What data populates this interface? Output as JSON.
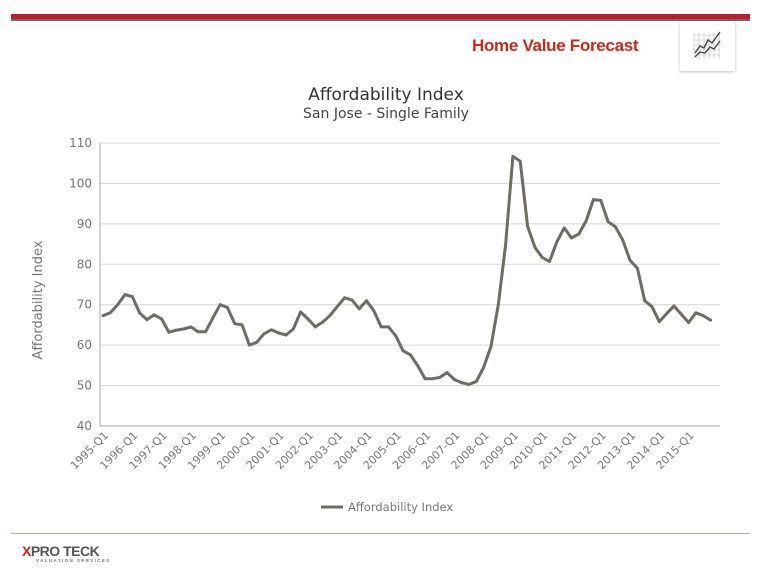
{
  "header": {
    "brand_title": "Home Value Forecast",
    "brand_icon": "line-chart-icon",
    "colors": {
      "accent_red": "#b5222d",
      "accent_grey": "#6b6b6b",
      "brand_text": "#c8281e"
    }
  },
  "footer": {
    "logo_mark": "X",
    "logo_name": "PRO TECK",
    "logo_tagline": "VALUATION SERVICES"
  },
  "chart_data": {
    "type": "line",
    "title": "Affordability Index",
    "subtitle": "San Jose - Single Family",
    "xlabel": "",
    "ylabel": "Affordability Index",
    "ylim": [
      40,
      110
    ],
    "yticks": [
      40,
      50,
      60,
      70,
      80,
      90,
      100,
      110
    ],
    "grid": true,
    "legend": {
      "position": "bottom",
      "entries": [
        "Affordability Index"
      ]
    },
    "x_tick_labels": [
      "1995-Q1",
      "1996-Q1",
      "1997-Q1",
      "1998-Q1",
      "1999-Q1",
      "2000-Q1",
      "2001-Q1",
      "2002-Q1",
      "2003-Q1",
      "2004-Q1",
      "2005-Q1",
      "2006-Q1",
      "2007-Q1",
      "2008-Q1",
      "2009-Q1",
      "2010-Q1",
      "2011-Q1",
      "2012-Q1",
      "2013-Q1",
      "2014-Q1",
      "2015-Q1"
    ],
    "x_start": "1995-Q1",
    "x_end": "2015-Q4",
    "series": [
      {
        "name": "Affordability Index",
        "color": "#6e6c64",
        "values": [
          67.3,
          68.0,
          70.0,
          72.5,
          72.0,
          68.0,
          66.3,
          67.5,
          66.5,
          63.2,
          63.7,
          64.0,
          64.5,
          63.3,
          63.3,
          66.7,
          70.0,
          69.3,
          65.3,
          65.0,
          60.0,
          60.7,
          62.8,
          63.8,
          63.0,
          62.5,
          64.0,
          68.2,
          66.5,
          64.5,
          65.7,
          67.3,
          69.5,
          71.7,
          71.2,
          69.0,
          71.0,
          68.5,
          64.5,
          64.5,
          62.3,
          58.6,
          57.6,
          54.9,
          51.7,
          51.7,
          52.0,
          53.2,
          51.5,
          50.7,
          50.3,
          51.0,
          54.5,
          59.7,
          70.0,
          84.8,
          106.7,
          105.5,
          89.4,
          84.2,
          81.7,
          80.7,
          85.5,
          89.0,
          86.5,
          87.5,
          90.7,
          96.0,
          95.8,
          90.5,
          89.3,
          86.0,
          81.0,
          79.0,
          71.0,
          69.5,
          65.8,
          67.8,
          69.7,
          67.6,
          65.6,
          68.0,
          67.3,
          66.2
        ]
      }
    ]
  }
}
